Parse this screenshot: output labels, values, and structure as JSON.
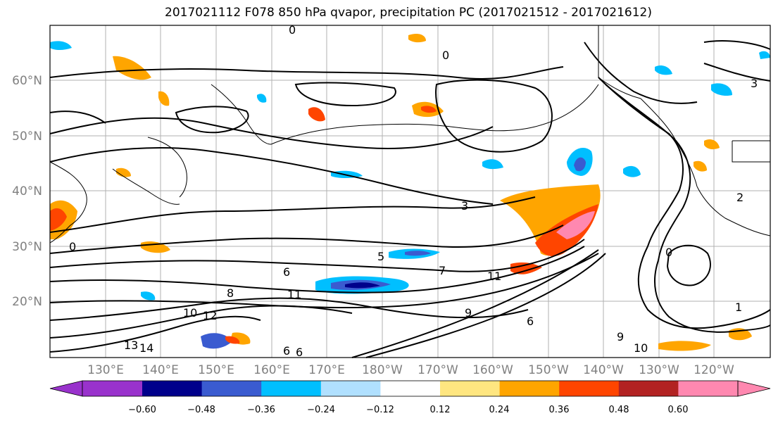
{
  "title": "2017021112 F078 850 hPa qvapor, precipitation PC (2017021512 - 2017021612)",
  "lat_labels": [
    "60°N",
    "50°N",
    "40°N",
    "30°N",
    "20°N"
  ],
  "lon_labels": [
    "130°E",
    "140°E",
    "150°E",
    "160°E",
    "170°E",
    "180°W",
    "170°W",
    "160°W",
    "150°W",
    "140°W",
    "130°W",
    "120°W"
  ],
  "contour_labels": [
    "0",
    "0",
    "3",
    "5",
    "6",
    "7",
    "8",
    "11",
    "11",
    "12",
    "13",
    "14",
    "10",
    "9",
    "6",
    "6",
    "2",
    "6",
    "9",
    "10",
    "1",
    "0",
    "0",
    "3"
  ],
  "colorbar": {
    "ticks": [
      "−0.60",
      "−0.48",
      "−0.36",
      "−0.24",
      "−0.12",
      "0.12",
      "0.24",
      "0.36",
      "0.48",
      "0.60"
    ],
    "colors": [
      "#9932cc",
      "#00008b",
      "#3a5bd0",
      "#00bfff",
      "#b0e0ff",
      "#ffffff",
      "#ffe680",
      "#ffa500",
      "#ff4500",
      "#b22222",
      "#ff88b0"
    ]
  }
}
